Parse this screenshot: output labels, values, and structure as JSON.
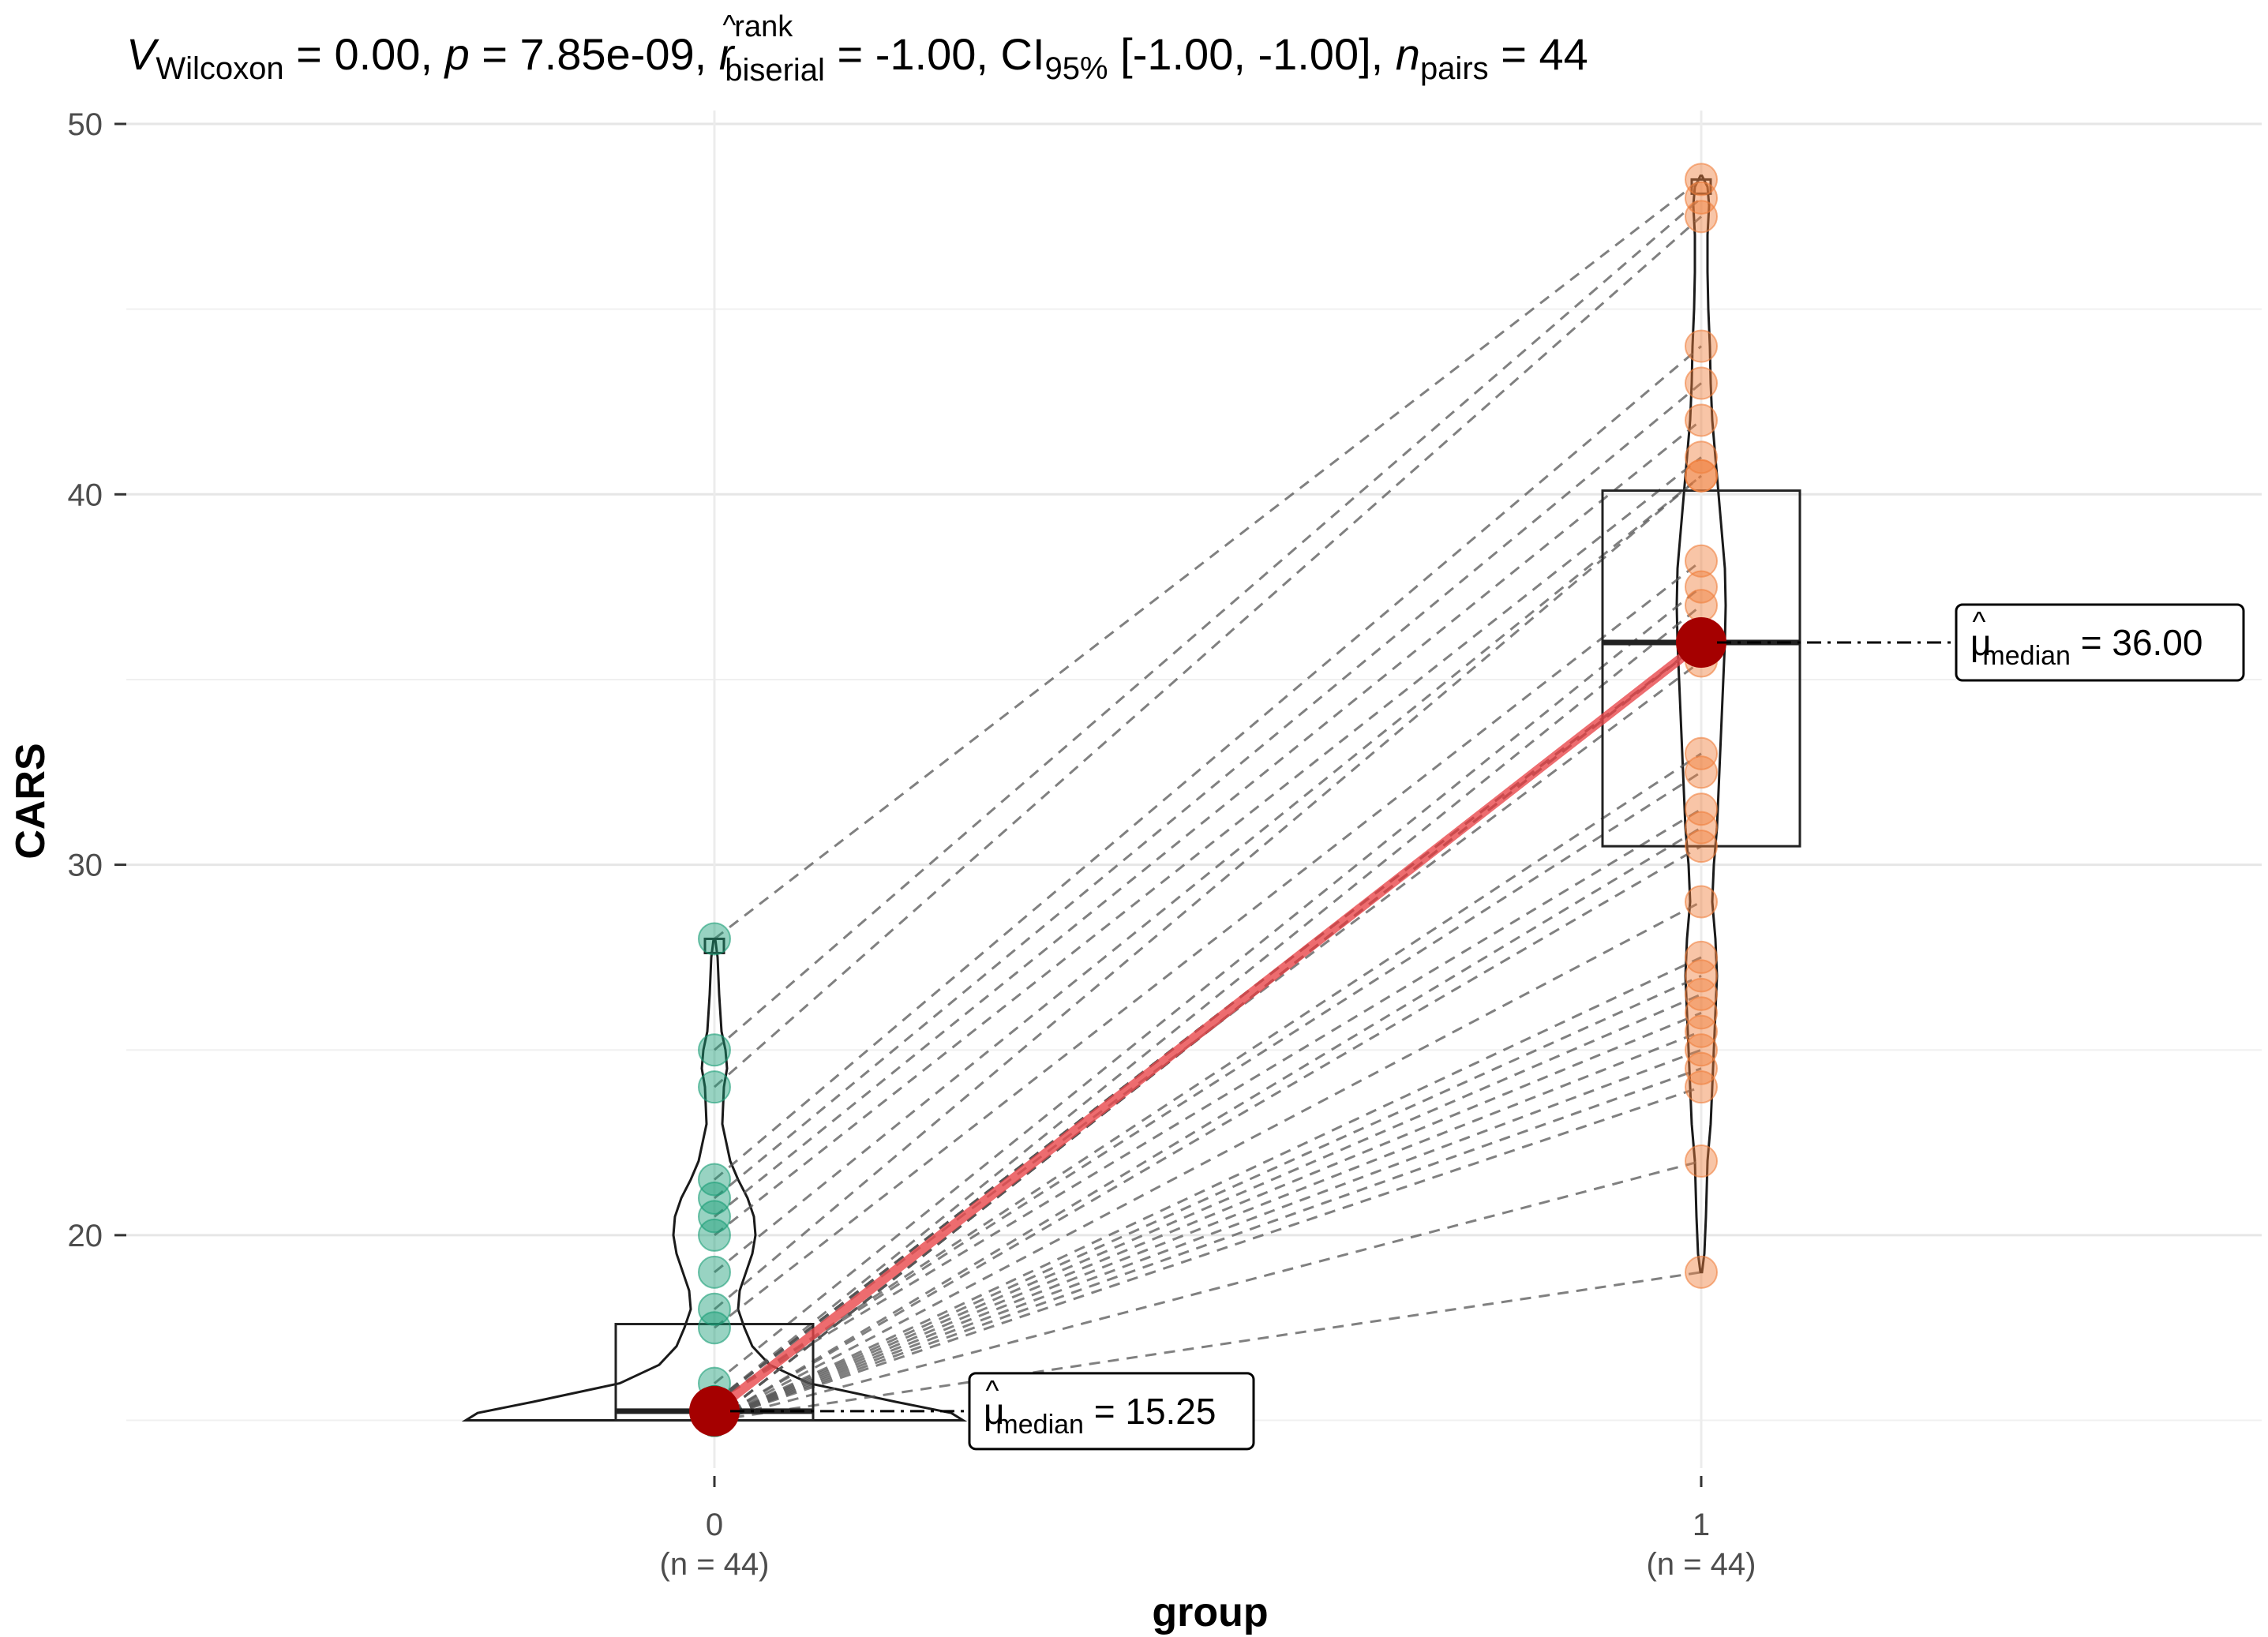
{
  "chart_data": {
    "type": "scatter",
    "subtitle_parts": {
      "V": "V",
      "V_sub": "Wilcoxon",
      "V_val": " = 0.00, ",
      "p": "p",
      "p_val": " = 7.85e-09, ",
      "r": "r",
      "r_hat": "^",
      "r_sup": "rank",
      "r_sub": "biserial",
      "r_val": " = -1.00, CI",
      "ci_sub": "95%",
      "ci_val": " [-1.00, -1.00], ",
      "n": "n",
      "n_sub": "pairs",
      "n_val": " = 44"
    },
    "xlabel": "group",
    "ylabel": "CARS",
    "ylim": [
      12.5,
      51
    ],
    "yticks": [
      20,
      30,
      40,
      50
    ],
    "categories": [
      "0",
      "1"
    ],
    "category_counts": [
      "(n = 44)",
      "(n = 44)"
    ],
    "grid": true,
    "series": [
      {
        "category": "0",
        "color": "#1B9E77",
        "values": [
          28,
          25,
          24,
          21.5,
          21,
          20.5,
          20,
          19,
          18,
          17.5,
          16,
          15.5,
          15.5,
          15.5,
          15.5,
          15.5,
          15.5,
          15.5,
          15.5,
          15.5,
          15.5,
          15.5,
          15.5,
          15,
          15,
          15,
          15,
          15,
          15,
          15,
          15,
          15,
          15,
          15,
          15,
          15,
          15,
          15,
          15,
          15,
          15,
          15,
          15,
          15
        ]
      },
      {
        "category": "1",
        "color": "#F07F3C",
        "values": [
          48.5,
          48,
          47.5,
          44,
          43,
          42,
          41,
          40.5,
          40.5,
          38.2,
          37.5,
          37,
          36,
          36,
          36,
          36,
          36,
          36,
          36,
          35.5,
          33,
          32.5,
          31.5,
          31,
          30.5,
          29,
          27.5,
          27,
          26.5,
          26,
          25.5,
          25,
          24.5,
          24,
          22,
          19,
          36,
          36,
          36,
          36,
          36,
          36,
          36,
          36
        ]
      }
    ],
    "medians": [
      15.25,
      36.0
    ],
    "median_labels": [
      {
        "mu": "μ",
        "hat": "^",
        "sub": "median",
        "value": " = 15.25"
      },
      {
        "mu": "μ",
        "hat": "^",
        "sub": "median",
        "value": " = 36.00"
      }
    ],
    "boxplots": [
      {
        "q1": 15,
        "median": 15.25,
        "q3": 17.6,
        "min": 15,
        "max": 28
      },
      {
        "q1": 30.5,
        "median": 36,
        "q3": 40.1,
        "min": 19,
        "max": 48.5
      }
    ],
    "mean_line_color": "#E8474B",
    "median_point_color": "#A50000"
  }
}
